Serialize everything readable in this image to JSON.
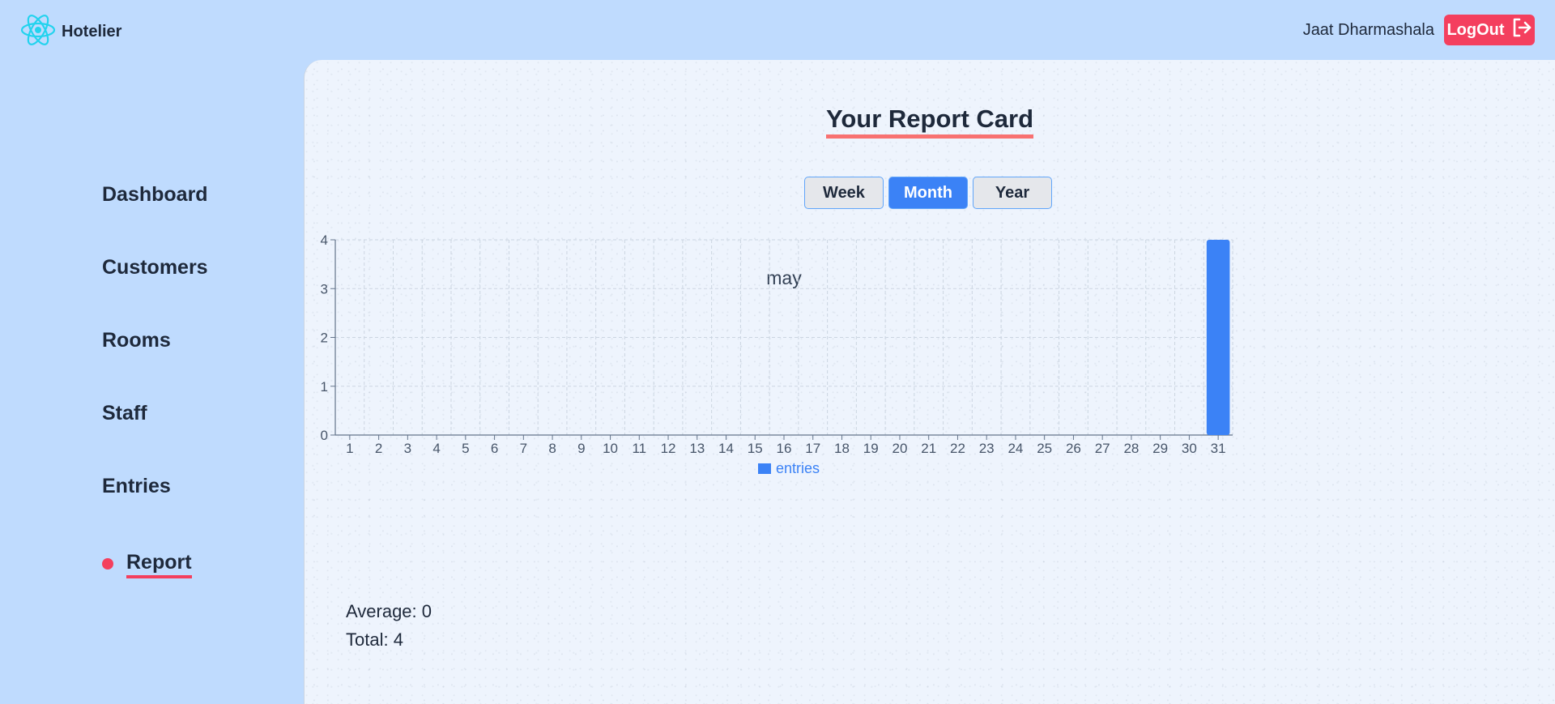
{
  "app": {
    "name": "Hotelier"
  },
  "header": {
    "user_name": "Jaat Dharmashala",
    "logout_label": "LogOut"
  },
  "sidebar": {
    "items": [
      {
        "label": "Dashboard",
        "active": false
      },
      {
        "label": "Customers",
        "active": false
      },
      {
        "label": "Rooms",
        "active": false
      },
      {
        "label": "Staff",
        "active": false
      },
      {
        "label": "Entries",
        "active": false
      },
      {
        "label": "Report",
        "active": true
      }
    ]
  },
  "main": {
    "title": "Your Report Card",
    "tabs": [
      {
        "label": "Week",
        "active": false
      },
      {
        "label": "Month",
        "active": true
      },
      {
        "label": "Year",
        "active": false
      }
    ],
    "stats": {
      "average": "Average: 0",
      "total": "Total: 4"
    }
  },
  "colors": {
    "accent": "#3b82f6",
    "danger": "#f43f5e",
    "sidebar_bg": "#bfdbfe",
    "help": "#f97316"
  },
  "chart_data": {
    "type": "bar",
    "title": "may",
    "categories": [
      "1",
      "2",
      "3",
      "4",
      "5",
      "6",
      "7",
      "8",
      "9",
      "10",
      "11",
      "12",
      "13",
      "14",
      "15",
      "16",
      "17",
      "18",
      "19",
      "20",
      "21",
      "22",
      "23",
      "24",
      "25",
      "26",
      "27",
      "28",
      "29",
      "30",
      "31"
    ],
    "series": [
      {
        "name": "entries",
        "values": [
          0,
          0,
          0,
          0,
          0,
          0,
          0,
          0,
          0,
          0,
          0,
          0,
          0,
          0,
          0,
          0,
          0,
          0,
          0,
          0,
          0,
          0,
          0,
          0,
          0,
          0,
          0,
          0,
          0,
          0,
          4
        ]
      }
    ],
    "yticks": [
      0,
      1,
      2,
      3,
      4
    ],
    "ylim": [
      0,
      4
    ],
    "grid": true,
    "legend": "bottom"
  }
}
